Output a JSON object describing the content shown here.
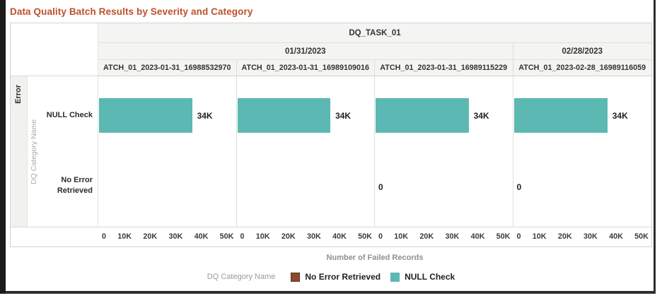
{
  "title": "Data Quality Batch Results by Severity and Category",
  "colors": {
    "title": "#bf4f2d",
    "bar_null_check": "#5cb8b2",
    "legend_no_error": "#8a4a2b",
    "header_bg": "#f4f4f2"
  },
  "header": {
    "task": "DQ_TASK_01",
    "dates": {
      "group1": "01/31/2023",
      "group2": "02/28/2023"
    }
  },
  "row_group": {
    "severity": "Error",
    "axis_title": "DQ Category Name",
    "categories": {
      "first": "NULL Check",
      "second": "No Error Retrieved"
    }
  },
  "panels": [
    {
      "batch_label": "ATCH_01_2023-01-31_16988532970",
      "null_check_value": 34000,
      "null_check_label": "34K"
    },
    {
      "batch_label": "ATCH_01_2023-01-31_16989109016",
      "null_check_value": 34000,
      "null_check_label": "34K"
    },
    {
      "batch_label": "ATCH_01_2023-01-31_16989115229",
      "null_check_value": 34000,
      "null_check_label": "34K",
      "no_error_value": 0,
      "no_error_label": "0"
    },
    {
      "batch_label": "ATCH_01_2023-02-28_16989116059",
      "null_check_value": 34000,
      "null_check_label": "34K",
      "no_error_value": 0,
      "no_error_label": "0"
    }
  ],
  "x_axis": {
    "title": "Number of Failed Records",
    "max_value": 50000,
    "ticks": [
      "0",
      "10K",
      "20K",
      "30K",
      "40K",
      "50K"
    ]
  },
  "legend": {
    "title": "DQ Category Name",
    "items": [
      {
        "label": "No Error Retrieved",
        "color": "#8a4a2b"
      },
      {
        "label": "NULL Check",
        "color": "#5cb8b2"
      }
    ]
  },
  "chart_data": {
    "type": "bar",
    "orientation": "horizontal",
    "title": "Data Quality Batch Results by Severity and Category",
    "xlabel": "Number of Failed Records",
    "ylabel": "DQ Category Name",
    "row_facet": "Error",
    "column_facet_top": "DQ_TASK_01",
    "xlim": [
      0,
      50000
    ],
    "x_ticks": [
      "0",
      "10K",
      "20K",
      "30K",
      "40K",
      "50K"
    ],
    "grid": false,
    "legend_position": "bottom",
    "categories": [
      "NULL Check",
      "No Error Retrieved"
    ],
    "facets": [
      {
        "date": "01/31/2023",
        "batch": "ATCH_01_2023-01-31_16988532970",
        "values": {
          "NULL Check": 34000,
          "No Error Retrieved": null
        }
      },
      {
        "date": "01/31/2023",
        "batch": "ATCH_01_2023-01-31_16989109016",
        "values": {
          "NULL Check": 34000,
          "No Error Retrieved": null
        }
      },
      {
        "date": "01/31/2023",
        "batch": "ATCH_01_2023-01-31_16989115229",
        "values": {
          "NULL Check": 34000,
          "No Error Retrieved": 0
        }
      },
      {
        "date": "02/28/2023",
        "batch": "ATCH_01_2023-02-28_16989116059",
        "values": {
          "NULL Check": 34000,
          "No Error Retrieved": 0
        }
      }
    ],
    "series_colors": {
      "NULL Check": "#5cb8b2",
      "No Error Retrieved": "#8a4a2b"
    }
  }
}
